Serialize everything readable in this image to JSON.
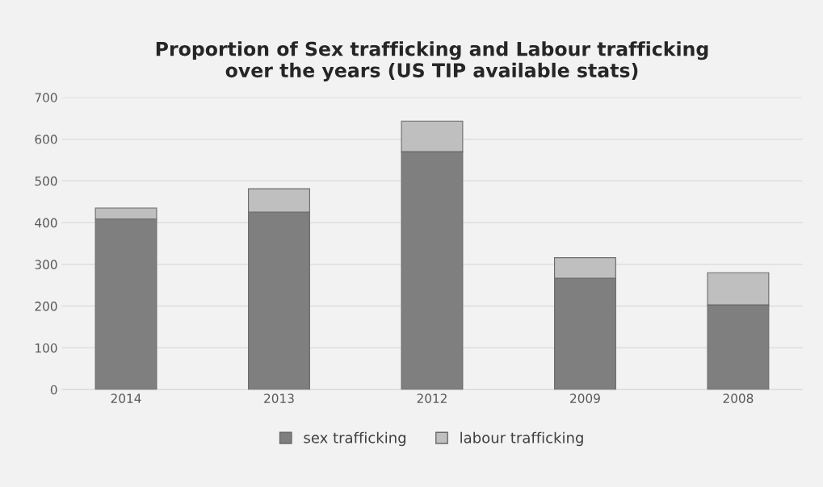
{
  "chart_data": {
    "type": "bar",
    "title": "Proportion of Sex trafficking and Labour trafficking\nover the years (US TIP available stats)",
    "categories": [
      "2014",
      "2013",
      "2012",
      "2009",
      "2008"
    ],
    "series": [
      {
        "name": "sex trafficking",
        "color": "#7f7f7f",
        "values": [
          409,
          425,
          570,
          267,
          203
        ]
      },
      {
        "name": "labour trafficking",
        "color": "#bfbfbf",
        "values": [
          26,
          56,
          73,
          49,
          77
        ]
      }
    ],
    "stacked": true,
    "ylim": [
      0,
      700
    ],
    "yticks": [
      0,
      100,
      200,
      300,
      400,
      500,
      600,
      700
    ],
    "grid": "y",
    "legend": "bottom"
  }
}
